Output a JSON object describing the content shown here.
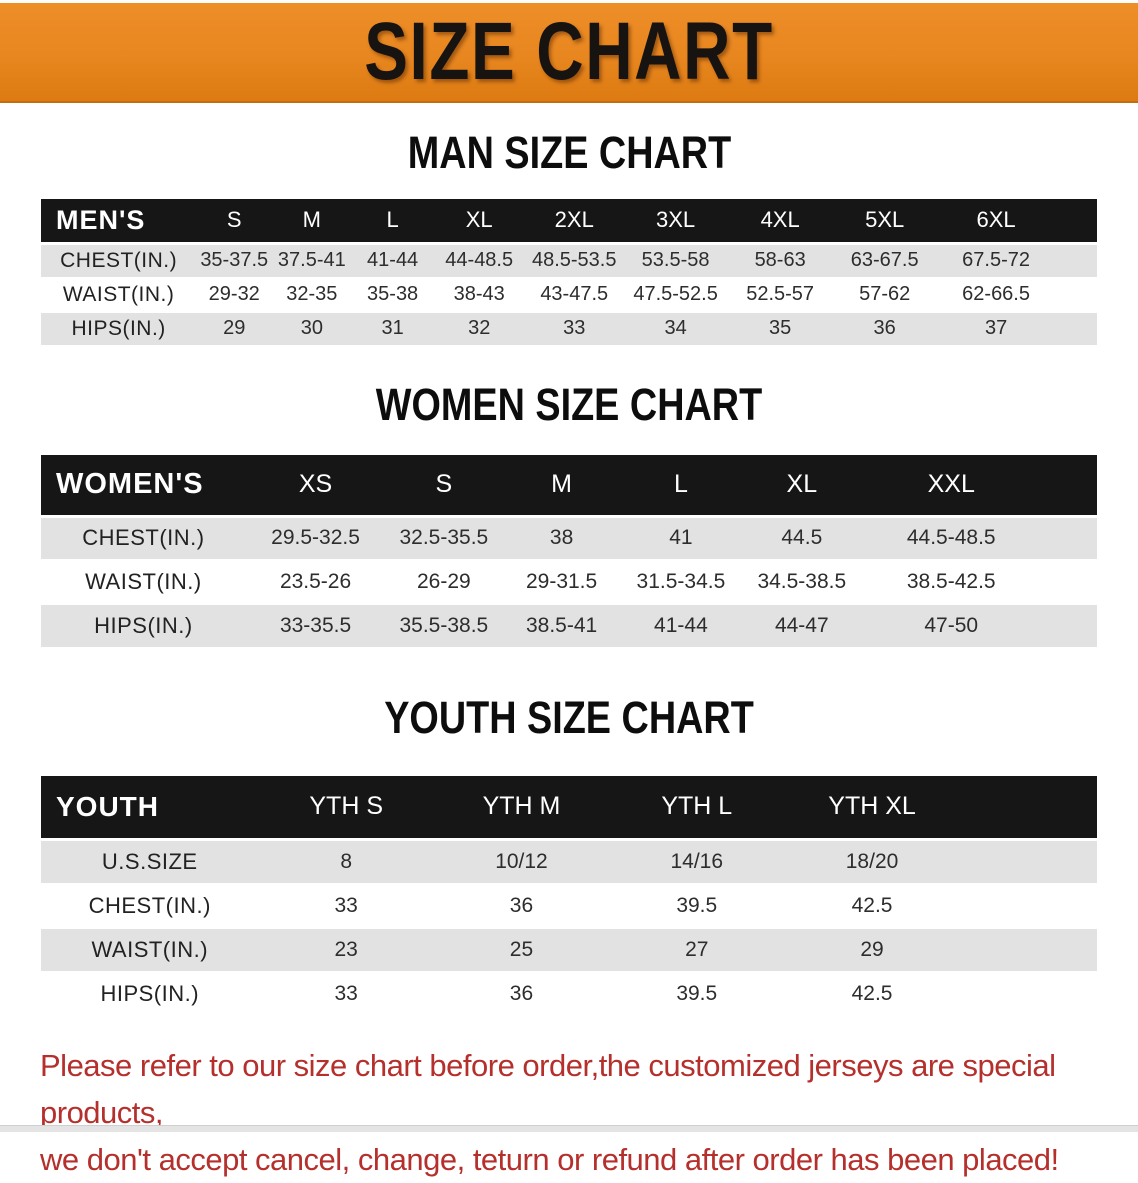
{
  "banner": {
    "title": "SIZE CHART"
  },
  "colors": {
    "banner_bg": "#E8861F",
    "header_band": "#161616",
    "row_gray": "#E2E2E2",
    "disclaimer_red": "#B5302C"
  },
  "sections": [
    {
      "heading": "MAN SIZE CHART",
      "table": {
        "label": "MEN'S",
        "sizes": [
          "S",
          "M",
          "L",
          "XL",
          "2XL",
          "3XL",
          "4XL",
          "5XL",
          "6XL"
        ],
        "rows": [
          {
            "label": "CHEST(IN.)",
            "values": [
              "35-37.5",
              "37.5-41",
              "41-44",
              "44-48.5",
              "48.5-53.5",
              "53.5-58",
              "58-63",
              "63-67.5",
              "67.5-72"
            ]
          },
          {
            "label": "WAIST(IN.)",
            "values": [
              "29-32",
              "32-35",
              "35-38",
              "38-43",
              "43-47.5",
              "47.5-52.5",
              "52.5-57",
              "57-62",
              "62-66.5"
            ]
          },
          {
            "label": "HIPS(IN.)",
            "values": [
              "29",
              "30",
              "31",
              "32",
              "33",
              "34",
              "35",
              "36",
              "37"
            ]
          }
        ]
      }
    },
    {
      "heading": "WOMEN SIZE CHART",
      "table": {
        "label": "WOMEN'S",
        "sizes": [
          "XS",
          "S",
          "M",
          "L",
          "XL",
          "XXL"
        ],
        "rows": [
          {
            "label": "CHEST(IN.)",
            "values": [
              "29.5-32.5",
              "32.5-35.5",
              "38",
              "41",
              "44.5",
              "44.5-48.5"
            ]
          },
          {
            "label": "WAIST(IN.)",
            "values": [
              "23.5-26",
              "26-29",
              "29-31.5",
              "31.5-34.5",
              "34.5-38.5",
              "38.5-42.5"
            ]
          },
          {
            "label": "HIPS(IN.)",
            "values": [
              "33-35.5",
              "35.5-38.5",
              "38.5-41",
              "41-44",
              "44-47",
              "47-50"
            ]
          }
        ]
      }
    },
    {
      "heading": "YOUTH SIZE CHART",
      "table": {
        "label": "YOUTH",
        "sizes": [
          "YTH S",
          "YTH M",
          "YTH L",
          "YTH XL"
        ],
        "rows": [
          {
            "label": "U.S.SIZE",
            "values": [
              "8",
              "10/12",
              "14/16",
              "18/20"
            ]
          },
          {
            "label": "CHEST(IN.)",
            "values": [
              "33",
              "36",
              "39.5",
              "42.5"
            ]
          },
          {
            "label": "WAIST(IN.)",
            "values": [
              "23",
              "25",
              "27",
              "29"
            ]
          },
          {
            "label": "HIPS(IN.)",
            "values": [
              "33",
              "36",
              "39.5",
              "42.5"
            ]
          }
        ]
      }
    }
  ],
  "footer": {
    "line1": "Please refer to our size chart before order,the customized jerseys are special products,",
    "line2": "we don't accept cancel, change, teturn or refund after order has been placed!"
  }
}
